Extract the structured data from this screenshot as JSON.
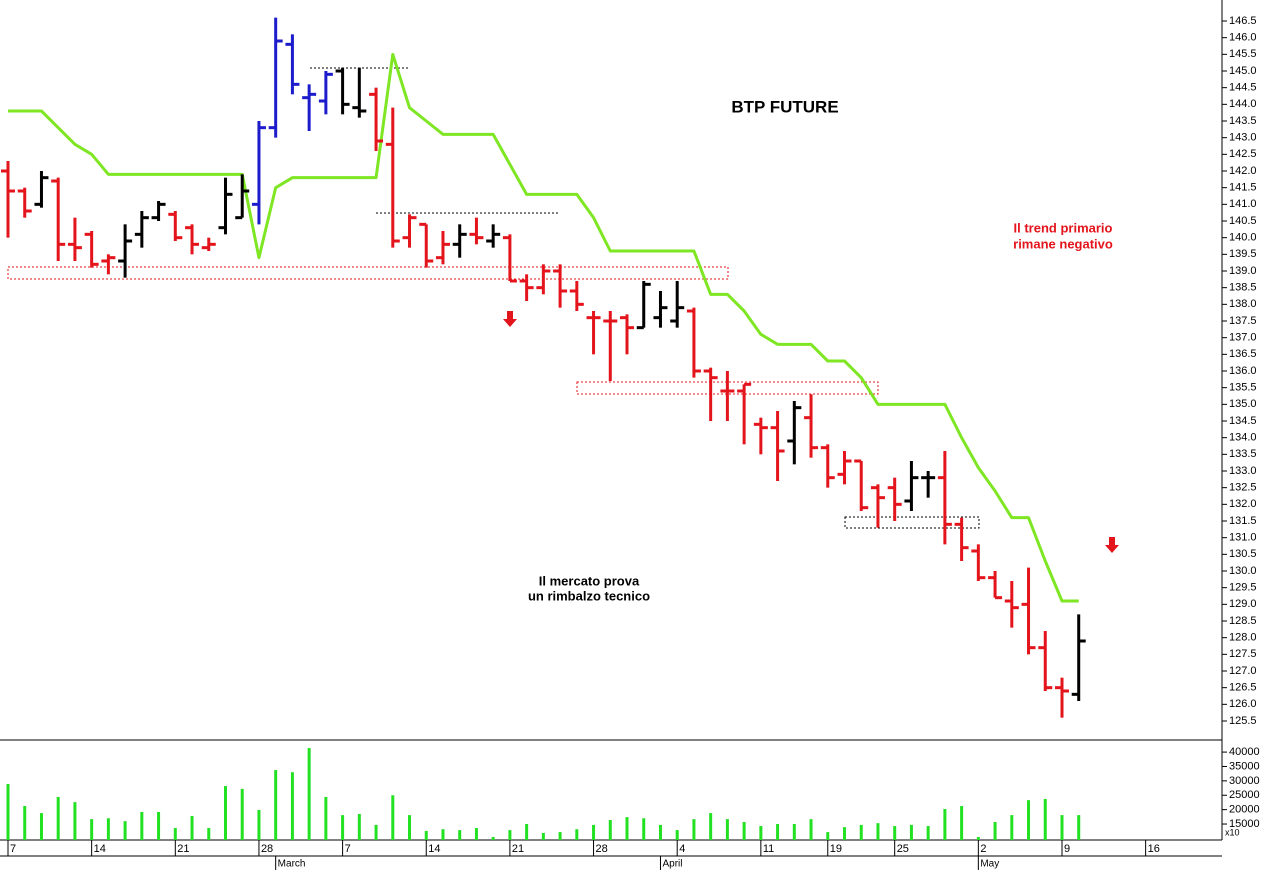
{
  "chart_data": {
    "type": "ohlc",
    "title": "BTP FUTURE",
    "annotation_trend": [
      "Il trend primario",
      "rimane negativo"
    ],
    "annotation_bounce": [
      "Il mercato prova",
      "un rimbalzo tecnico"
    ],
    "categories": [
      "7",
      null,
      null,
      null,
      null,
      "14",
      null,
      null,
      null,
      null,
      "21",
      null,
      null,
      null,
      null,
      "28",
      null,
      null,
      null,
      null,
      "7",
      null,
      null,
      null,
      null,
      "14",
      null,
      null,
      null,
      null,
      "21",
      null,
      null,
      null,
      null,
      "28",
      null,
      null,
      null,
      null,
      "4",
      null,
      null,
      null,
      null,
      "11",
      null,
      null,
      null,
      "19",
      null,
      null,
      null,
      "25",
      null,
      null,
      null,
      null,
      "2",
      null,
      null,
      null,
      null,
      "9",
      null,
      null,
      null,
      null,
      "16"
    ],
    "month_categories": [
      null,
      null,
      null,
      null,
      null,
      null,
      null,
      null,
      null,
      null,
      null,
      null,
      null,
      null,
      null,
      null,
      "March",
      null,
      null,
      null,
      null,
      null,
      null,
      null,
      null,
      null,
      null,
      null,
      null,
      null,
      null,
      null,
      null,
      null,
      null,
      null,
      null,
      null,
      null,
      "April",
      null,
      null,
      null,
      null,
      null,
      null,
      null,
      null,
      null,
      null,
      null,
      null,
      null,
      null,
      null,
      null,
      null,
      null,
      "May",
      null,
      null,
      null,
      null,
      null,
      null,
      null,
      null,
      null,
      null
    ],
    "open": [
      142.0,
      141.4,
      141.0,
      141.7,
      139.8,
      140.1,
      139.3,
      139.3,
      140.1,
      140.6,
      140.7,
      140.3,
      139.7,
      140.3,
      140.6,
      141.0,
      143.3,
      145.8,
      144.2,
      144.1,
      145.0,
      143.9,
      144.3,
      142.8,
      140.0,
      140.4,
      139.4,
      139.8,
      140.1,
      139.9,
      140.0,
      138.7,
      138.5,
      139.0,
      138.4,
      137.6,
      137.5,
      137.6,
      137.3,
      137.6,
      137.5,
      137.8,
      136.0,
      135.4,
      135.4,
      134.4,
      134.3,
      133.9,
      134.6,
      133.7,
      132.9,
      133.3,
      132.5,
      132.5,
      132.1,
      132.8,
      132.8,
      131.4,
      130.6,
      129.8,
      129.1,
      129.0,
      127.7,
      126.5,
      126.3,
      null,
      null,
      null,
      null
    ],
    "high": [
      142.3,
      141.5,
      142.0,
      141.8,
      140.6,
      140.2,
      139.5,
      140.4,
      140.8,
      141.1,
      140.8,
      140.4,
      140.0,
      141.8,
      141.9,
      143.5,
      146.6,
      146.1,
      144.6,
      145.0,
      145.1,
      145.1,
      144.5,
      143.9,
      140.7,
      140.4,
      140.2,
      140.4,
      140.6,
      140.4,
      140.1,
      138.9,
      139.2,
      139.2,
      138.7,
      137.8,
      137.8,
      137.7,
      138.7,
      138.4,
      138.7,
      137.9,
      136.1,
      136.0,
      135.6,
      134.6,
      134.8,
      135.1,
      135.3,
      133.8,
      133.6,
      133.3,
      132.6,
      132.8,
      133.3,
      133.0,
      133.6,
      131.6,
      130.8,
      130.0,
      129.7,
      130.1,
      128.2,
      126.8,
      128.7,
      null,
      null,
      null,
      null
    ],
    "low": [
      140.0,
      140.6,
      140.9,
      139.3,
      139.3,
      139.1,
      138.9,
      138.8,
      139.7,
      140.5,
      139.9,
      139.5,
      139.6,
      140.1,
      140.6,
      140.4,
      143.0,
      144.3,
      143.2,
      143.7,
      143.7,
      143.6,
      142.6,
      139.7,
      139.7,
      139.1,
      139.2,
      139.4,
      139.8,
      139.7,
      138.7,
      138.1,
      138.3,
      137.9,
      137.8,
      136.5,
      135.7,
      136.5,
      137.3,
      137.3,
      137.3,
      135.8,
      134.5,
      134.5,
      133.8,
      133.5,
      132.7,
      133.2,
      133.4,
      132.5,
      132.6,
      131.8,
      131.3,
      131.5,
      131.8,
      132.2,
      130.8,
      130.3,
      129.7,
      129.2,
      128.3,
      127.5,
      126.4,
      125.6,
      126.1,
      null,
      null,
      null,
      null
    ],
    "close": [
      141.4,
      140.8,
      141.8,
      139.8,
      139.7,
      139.2,
      139.4,
      139.9,
      140.6,
      141.0,
      140.0,
      139.8,
      139.8,
      141.3,
      141.4,
      143.3,
      145.9,
      144.6,
      144.3,
      144.9,
      144.0,
      143.8,
      142.9,
      139.9,
      140.6,
      139.3,
      139.8,
      140.1,
      140.0,
      140.1,
      138.7,
      138.5,
      139.0,
      138.4,
      138.0,
      137.6,
      137.5,
      137.3,
      138.6,
      137.9,
      137.9,
      136.0,
      135.8,
      135.4,
      135.6,
      134.3,
      133.6,
      134.9,
      133.7,
      132.8,
      133.3,
      131.9,
      132.2,
      132.0,
      132.8,
      132.8,
      131.4,
      130.7,
      129.8,
      129.2,
      128.9,
      127.7,
      126.5,
      126.4,
      127.9,
      null,
      null,
      null,
      null
    ],
    "bar_colors": [
      "#e3141b",
      "#e3141b",
      "#000000",
      "#e3141b",
      "#e3141b",
      "#e3141b",
      "#e3141b",
      "#000000",
      "#000000",
      "#000000",
      "#e3141b",
      "#e3141b",
      "#e3141b",
      "#000000",
      "#000000",
      "#1c1ccc",
      "#1c1ccc",
      "#1c1ccc",
      "#1c1ccc",
      "#1c1ccc",
      "#000000",
      "#000000",
      "#e3141b",
      "#e3141b",
      "#e3141b",
      "#e3141b",
      "#e3141b",
      "#000000",
      "#e3141b",
      "#000000",
      "#e3141b",
      "#e3141b",
      "#e3141b",
      "#e3141b",
      "#e3141b",
      "#e3141b",
      "#e3141b",
      "#e3141b",
      "#000000",
      "#000000",
      "#000000",
      "#e3141b",
      "#e3141b",
      "#e3141b",
      "#e3141b",
      "#e3141b",
      "#e3141b",
      "#000000",
      "#e3141b",
      "#e3141b",
      "#e3141b",
      "#e3141b",
      "#e3141b",
      "#e3141b",
      "#000000",
      "#000000",
      "#e3141b",
      "#e3141b",
      "#e3141b",
      "#e3141b",
      "#e3141b",
      "#e3141b",
      "#e3141b",
      "#e3141b",
      "#000000",
      null,
      null,
      null,
      null
    ],
    "ma": [
      143.8,
      143.8,
      143.8,
      143.3,
      142.8,
      142.5,
      141.9,
      141.9,
      141.9,
      141.9,
      141.9,
      141.9,
      141.9,
      141.9,
      141.9,
      139.4,
      141.5,
      141.8,
      141.8,
      141.8,
      141.8,
      141.8,
      141.8,
      145.5,
      143.9,
      143.5,
      143.1,
      143.1,
      143.1,
      143.1,
      142.2,
      141.3,
      141.3,
      141.3,
      141.3,
      140.6,
      139.6,
      139.6,
      139.6,
      139.6,
      139.6,
      139.6,
      138.3,
      138.3,
      137.8,
      137.1,
      136.8,
      136.8,
      136.8,
      136.3,
      136.3,
      135.8,
      135.0,
      135.0,
      135.0,
      135.0,
      135.0,
      134.0,
      133.1,
      132.4,
      131.6,
      131.6,
      130.3,
      129.1,
      129.1,
      null,
      null,
      null,
      null
    ],
    "ma_color": "#7ee623",
    "ylim": [
      124.93,
      147.13
    ],
    "yticks": [
      {
        "value": 125.5,
        "label": "125.5"
      },
      {
        "value": 126,
        "label": "126.0"
      },
      126.5,
      {
        "value": 127,
        "label": "127.0"
      },
      127.5,
      {
        "value": 128,
        "label": "128.0"
      },
      128.5,
      {
        "value": 129,
        "label": "129.0"
      },
      129.5,
      {
        "value": 130,
        "label": "130.0"
      },
      130.5,
      {
        "value": 131,
        "label": "131.0"
      },
      131.5,
      {
        "value": 132,
        "label": "132.0"
      },
      132.5,
      {
        "value": 133,
        "label": "133.0"
      },
      133.5,
      {
        "value": 134,
        "label": "134.0"
      },
      134.5,
      {
        "value": 135,
        "label": "135.0"
      },
      135.5,
      {
        "value": 136,
        "label": "136.0"
      },
      136.5,
      {
        "value": 137,
        "label": "137.0"
      },
      137.5,
      {
        "value": 138,
        "label": "138.0"
      },
      138.5,
      {
        "value": 139,
        "label": "139.0"
      },
      139.5,
      {
        "value": 140,
        "label": "140.0"
      },
      140.5,
      {
        "value": 141,
        "label": "141.0"
      },
      141.5,
      {
        "value": 142,
        "label": "142.0"
      },
      142.5,
      {
        "value": 143,
        "label": "143.0"
      },
      143.5,
      {
        "value": 144,
        "label": "144.0"
      },
      144.5,
      {
        "value": 145,
        "label": "145.0"
      },
      145.5,
      {
        "value": 146,
        "label": "146.0"
      },
      146.5
    ],
    "volume": [
      28900,
      21250,
      18800,
      24400,
      22600,
      16700,
      17000,
      16000,
      19200,
      19200,
      13600,
      17800,
      13600,
      28200,
      27200,
      19900,
      33750,
      33000,
      41400,
      24400,
      18100,
      18500,
      14700,
      25000,
      18100,
      12600,
      13200,
      12900,
      13600,
      10500,
      12900,
      15000,
      11900,
      12200,
      13200,
      14700,
      16400,
      17400,
      17000,
      14700,
      12900,
      16700,
      18800,
      16700,
      15700,
      14300,
      15000,
      15000,
      16700,
      12200,
      13900,
      14700,
      15300,
      14300,
      14700,
      14300,
      20200,
      21250,
      10500,
      15700,
      18100,
      23300,
      23700,
      18100,
      18100,
      null,
      null,
      null,
      null
    ],
    "volume_color": "#22e022",
    "volume_ylim": [
      9450,
      44200
    ],
    "volume_yticks": [
      15000,
      20000,
      25000,
      30000,
      35000,
      40000
    ],
    "volume_unit": "x10"
  }
}
